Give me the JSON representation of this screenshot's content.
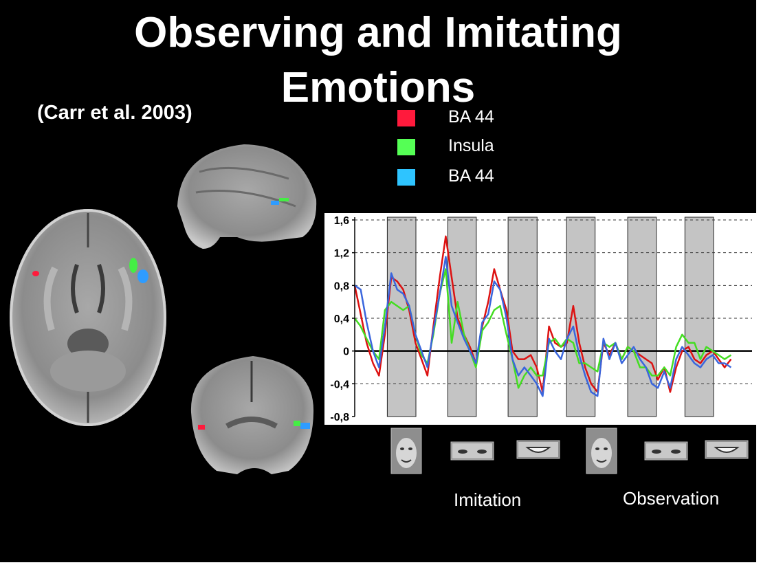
{
  "slide": {
    "title_line1": "Observing and Imitating",
    "title_line2": "Emotions",
    "citation": "(Carr et al. 2003)",
    "background": "#000000"
  },
  "legend": [
    {
      "label": "BA 44",
      "color": "#ff1a3c"
    },
    {
      "label": "Insula",
      "color": "#55ff55"
    },
    {
      "label": "BA 44",
      "color": "#2ec4ff"
    }
  ],
  "conditions": {
    "imitation": "Imitation",
    "observation": "Observation"
  },
  "stimuli": [
    "face",
    "eyes",
    "mouth",
    "face",
    "eyes",
    "mouth"
  ],
  "chart_data": {
    "type": "line",
    "ylim": [
      -0.8,
      1.6
    ],
    "xlim": [
      0,
      100
    ],
    "yticks": [
      "1,6",
      "1,2",
      "0,8",
      "0,4",
      "0",
      "-0,4",
      "-0,8"
    ],
    "grid": "dashed horizontal",
    "block_intervals": [
      [
        8.2,
        15.4
      ],
      [
        23.4,
        30.6
      ],
      [
        38.6,
        45.9
      ],
      [
        53.3,
        60.5
      ],
      [
        68.7,
        75.9
      ],
      [
        83.1,
        90.3
      ]
    ],
    "x": [
      0,
      1.5,
      3,
      4.6,
      6.1,
      7.6,
      9.2,
      10.7,
      12.2,
      13.7,
      15.3,
      16.8,
      18.3,
      19.8,
      21.4,
      22.9,
      24.4,
      25.9,
      27.5,
      29,
      30.5,
      32.1,
      33.6,
      35.1,
      36.6,
      38.2,
      39.7,
      41.2,
      42.7,
      44.3,
      45.8,
      47.3,
      48.9,
      50.4,
      51.9,
      53.4,
      55,
      56.5,
      58,
      59.5,
      61.1,
      62.6,
      64.1,
      65.6,
      67.2,
      68.7,
      70.2,
      71.8,
      73.3,
      74.8,
      76.3,
      77.9,
      79.4,
      80.9,
      82.4,
      84,
      85.5,
      87,
      88.5,
      90.1,
      91.6,
      93.1,
      94.7
    ],
    "series": [
      {
        "color": "#dd1111",
        "values": [
          0.8,
          0.45,
          0.1,
          -0.15,
          -0.3,
          0.2,
          0.9,
          0.85,
          0.75,
          0.5,
          0.1,
          -0.1,
          -0.3,
          0.3,
          0.9,
          1.4,
          0.9,
          0.4,
          0.2,
          0.05,
          -0.15,
          0.3,
          0.6,
          1.0,
          0.75,
          0.5,
          0.0,
          -0.1,
          -0.1,
          -0.05,
          -0.2,
          -0.5,
          0.3,
          0.1,
          0.05,
          0.1,
          0.55,
          0.1,
          -0.2,
          -0.4,
          -0.5,
          0.1,
          -0.05,
          0.1,
          -0.1,
          0.05,
          0.0,
          -0.05,
          -0.1,
          -0.15,
          -0.35,
          -0.2,
          -0.5,
          -0.2,
          0.0,
          0.05,
          -0.1,
          -0.15,
          -0.05,
          0.0,
          -0.1,
          -0.2,
          -0.1
        ]
      },
      {
        "color": "#44dd22",
        "values": [
          0.4,
          0.3,
          0.15,
          0.0,
          -0.1,
          0.5,
          0.6,
          0.55,
          0.5,
          0.55,
          0.2,
          -0.05,
          -0.15,
          0.2,
          0.7,
          1.0,
          0.1,
          0.6,
          0.2,
          0.0,
          -0.2,
          0.25,
          0.35,
          0.5,
          0.55,
          0.2,
          -0.1,
          -0.45,
          -0.3,
          -0.2,
          -0.3,
          -0.3,
          0.1,
          0.15,
          0.05,
          0.15,
          0.1,
          -0.15,
          -0.15,
          -0.2,
          -0.25,
          0.1,
          0.05,
          0.1,
          -0.1,
          0.05,
          0.0,
          -0.2,
          -0.2,
          -0.3,
          -0.3,
          -0.2,
          -0.3,
          0.05,
          0.2,
          0.1,
          0.1,
          -0.1,
          0.05,
          0.0,
          -0.05,
          -0.1,
          -0.05
        ]
      },
      {
        "color": "#3a66dd",
        "values": [
          0.8,
          0.75,
          0.35,
          0.0,
          -0.2,
          0.3,
          0.95,
          0.75,
          0.7,
          0.55,
          0.2,
          0.0,
          -0.2,
          0.25,
          0.7,
          1.15,
          0.55,
          0.35,
          0.15,
          0.0,
          -0.15,
          0.35,
          0.45,
          0.85,
          0.75,
          0.4,
          -0.1,
          -0.3,
          -0.2,
          -0.3,
          -0.4,
          -0.55,
          0.15,
          0.0,
          -0.1,
          0.15,
          0.3,
          -0.05,
          -0.3,
          -0.5,
          -0.55,
          0.15,
          -0.1,
          0.1,
          -0.15,
          -0.05,
          0.05,
          -0.1,
          -0.2,
          -0.4,
          -0.45,
          -0.25,
          -0.45,
          -0.1,
          0.05,
          -0.05,
          -0.15,
          -0.2,
          -0.1,
          -0.05,
          -0.15,
          -0.15,
          -0.2
        ]
      }
    ]
  }
}
